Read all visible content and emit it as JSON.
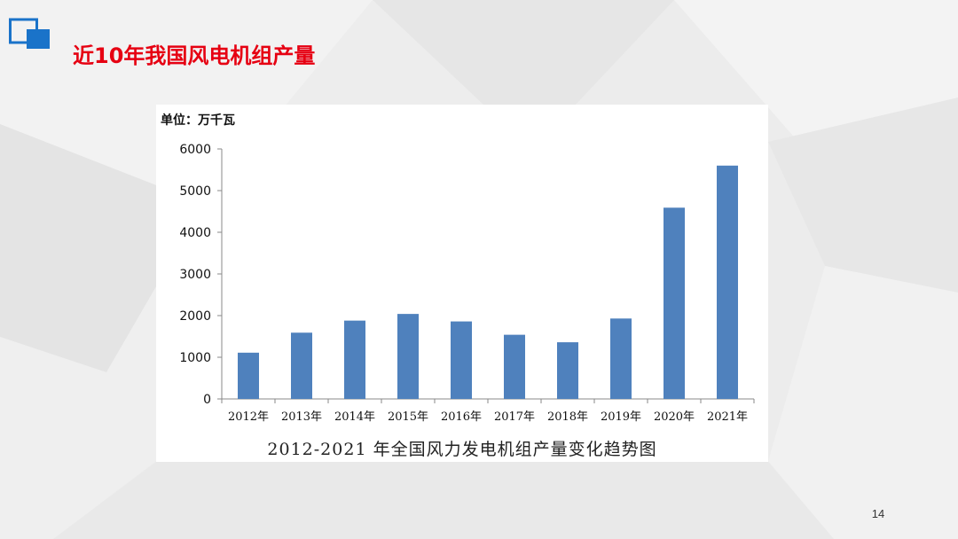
{
  "slide": {
    "title": "近10年我国风电机组产量",
    "page_number": "14"
  },
  "colors": {
    "title": "#e60012",
    "bar": "#4f81bd",
    "logo": "#1a73c9"
  },
  "chart_data": {
    "type": "bar",
    "unit_label": "单位：万千瓦",
    "caption": "2012-2021 年全国风力发电机组产量变化趋势图",
    "categories": [
      "2012年",
      "2013年",
      "2014年",
      "2015年",
      "2016年",
      "2017年",
      "2018年",
      "2019年",
      "2020年",
      "2021年"
    ],
    "values": [
      1110,
      1590,
      1880,
      2040,
      1860,
      1540,
      1360,
      1930,
      4590,
      5600
    ],
    "ylim": [
      0,
      6000
    ],
    "yticks": [
      0,
      1000,
      2000,
      3000,
      4000,
      5000,
      6000
    ],
    "grid": false,
    "legend": "none"
  }
}
